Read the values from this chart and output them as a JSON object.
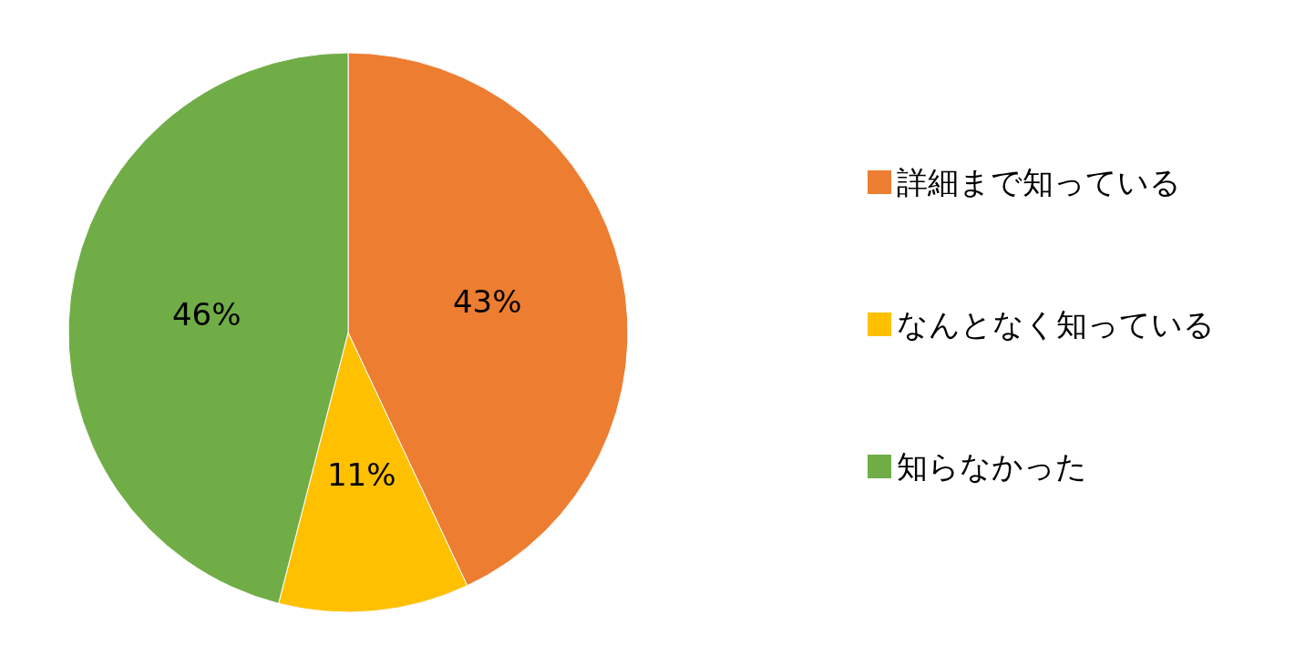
{
  "chart_data": {
    "type": "pie",
    "categories": [
      "詳細まで知っている",
      "なんとなく知っている",
      "知らなかった"
    ],
    "values": [
      43,
      11,
      46
    ],
    "colors": [
      "#ed7d31",
      "#ffc000",
      "#70ad47"
    ],
    "value_labels": [
      "43%",
      "11%",
      "46%"
    ],
    "legend": "right"
  }
}
